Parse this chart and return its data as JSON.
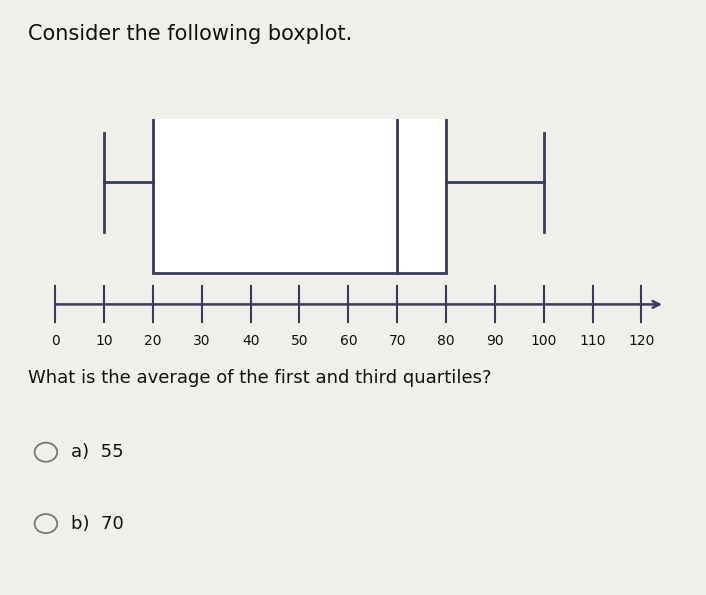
{
  "title": "Consider the following boxplot.",
  "question": "What is the average of the first and third quartiles?",
  "options": [
    "a)  55",
    "b)  70"
  ],
  "whisker_low": 10,
  "q1": 20,
  "median": 70,
  "q3": 80,
  "whisker_high": 100,
  "axis_min": 0,
  "axis_max": 120,
  "axis_ticks": [
    0,
    10,
    20,
    30,
    40,
    50,
    60,
    70,
    80,
    90,
    100,
    110,
    120
  ],
  "box_color": "white",
  "box_edge_color": "#3a3a5c",
  "line_color": "#3a3a5c",
  "bg_color": "#f0efea",
  "text_color": "#111111",
  "title_fontsize": 15,
  "question_fontsize": 13,
  "option_fontsize": 13,
  "tick_fontsize": 10
}
